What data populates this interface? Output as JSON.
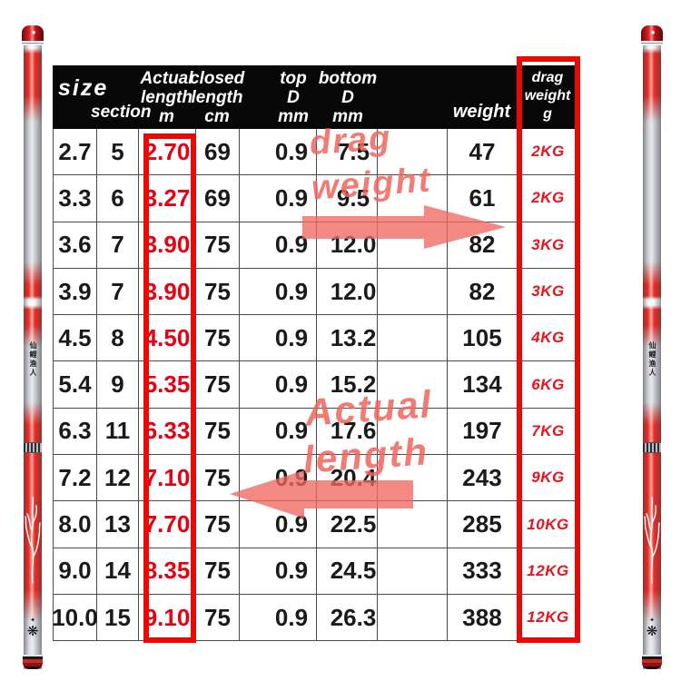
{
  "product": {
    "rod_brand_text": "仙鲤渔人"
  },
  "table": {
    "header": {
      "size": "size",
      "section": "section",
      "actual_length": [
        "Actual",
        "length",
        "m"
      ],
      "closed_length": [
        "closed",
        "length",
        "cm"
      ],
      "top_d": [
        "top",
        "D",
        "mm"
      ],
      "bottom_d": [
        "bottom",
        "D",
        "mm"
      ],
      "weight": "weight",
      "drag_weight": [
        "drag",
        "weight",
        "g"
      ]
    },
    "rows": [
      {
        "size": "2.7",
        "section": "5",
        "actual_length": "2.70",
        "closed_length": "69",
        "top_d": "0.9",
        "bottom_d": "7.5",
        "weight": "47",
        "drag_weight": "2KG"
      },
      {
        "size": "3.3",
        "section": "6",
        "actual_length": "3.27",
        "closed_length": "69",
        "top_d": "0.9",
        "bottom_d": "9.5",
        "weight": "61",
        "drag_weight": "2KG"
      },
      {
        "size": "3.6",
        "section": "7",
        "actual_length": "3.90",
        "closed_length": "75",
        "top_d": "0.9",
        "bottom_d": "12.0",
        "weight": "82",
        "drag_weight": "3KG"
      },
      {
        "size": "3.9",
        "section": "7",
        "actual_length": "3.90",
        "closed_length": "75",
        "top_d": "0.9",
        "bottom_d": "12.0",
        "weight": "82",
        "drag_weight": "3KG"
      },
      {
        "size": "4.5",
        "section": "8",
        "actual_length": "4.50",
        "closed_length": "75",
        "top_d": "0.9",
        "bottom_d": "13.2",
        "weight": "105",
        "drag_weight": "4KG"
      },
      {
        "size": "5.4",
        "section": "9",
        "actual_length": "5.35",
        "closed_length": "75",
        "top_d": "0.9",
        "bottom_d": "15.2",
        "weight": "134",
        "drag_weight": "6KG"
      },
      {
        "size": "6.3",
        "section": "11",
        "actual_length": "6.33",
        "closed_length": "75",
        "top_d": "0.9",
        "bottom_d": "17.6",
        "weight": "197",
        "drag_weight": "7KG"
      },
      {
        "size": "7.2",
        "section": "12",
        "actual_length": "7.10",
        "closed_length": "75",
        "top_d": "0.9",
        "bottom_d": "20.4",
        "weight": "243",
        "drag_weight": "9KG"
      },
      {
        "size": "8.0",
        "section": "13",
        "actual_length": "7.70",
        "closed_length": "75",
        "top_d": "0.9",
        "bottom_d": "22.5",
        "weight": "285",
        "drag_weight": "10KG"
      },
      {
        "size": "9.0",
        "section": "14",
        "actual_length": "8.35",
        "closed_length": "75",
        "top_d": "0.9",
        "bottom_d": "24.5",
        "weight": "333",
        "drag_weight": "12KG"
      },
      {
        "size": "10.0",
        "section": "15",
        "actual_length": "9.10",
        "closed_length": "75",
        "top_d": "0.9",
        "bottom_d": "26.3",
        "weight": "388",
        "drag_weight": "12KG"
      }
    ]
  },
  "annotations": {
    "drag_line1": "drag",
    "drag_line2": "weight",
    "actual_line1": "Actual",
    "actual_line2": "length"
  },
  "colors": {
    "highlight_box_red": "#ee0702",
    "value_red": "#e60012",
    "drag_value_red": "#e8131d",
    "annotation_salmon": "#ef685f",
    "rod_red": "#e8150b",
    "header_black": "#070707"
  }
}
